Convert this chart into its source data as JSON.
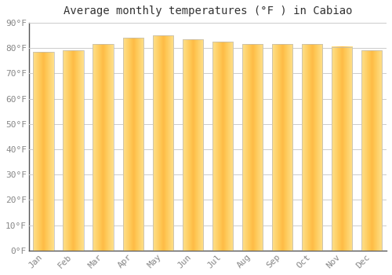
{
  "title": "Average monthly temperatures (°F ) in Cabiao",
  "months": [
    "Jan",
    "Feb",
    "Mar",
    "Apr",
    "May",
    "Jun",
    "Jul",
    "Aug",
    "Sep",
    "Oct",
    "Nov",
    "Dec"
  ],
  "values": [
    78.5,
    79.0,
    81.5,
    84.0,
    85.0,
    83.5,
    82.5,
    81.5,
    81.5,
    81.5,
    80.5,
    79.0
  ],
  "bar_color": "#FFB300",
  "bar_highlight": "#FFD54F",
  "bar_edge_color": "#E09000",
  "background_color": "#FFFFFF",
  "plot_bg_color": "#FFFFFF",
  "grid_color": "#CCCCCC",
  "spine_color": "#555555",
  "ylim": [
    0,
    90
  ],
  "yticks": [
    0,
    10,
    20,
    30,
    40,
    50,
    60,
    70,
    80,
    90
  ],
  "ytick_labels": [
    "0°F",
    "10°F",
    "20°F",
    "30°F",
    "40°F",
    "50°F",
    "60°F",
    "70°F",
    "80°F",
    "90°F"
  ],
  "title_fontsize": 10,
  "tick_fontsize": 8,
  "font_family": "monospace",
  "tick_color": "#888888"
}
